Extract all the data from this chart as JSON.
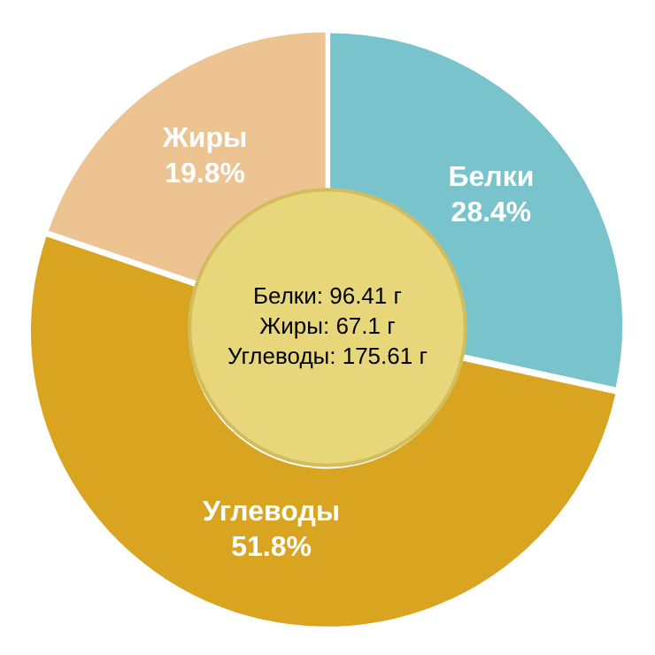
{
  "chart_data": {
    "type": "donut",
    "categories": [
      "Белки",
      "Углеводы",
      "Жиры"
    ],
    "values": [
      28.4,
      51.8,
      19.8
    ],
    "value_labels": [
      "28.4%",
      "51.8%",
      "19.8%"
    ],
    "colors": [
      "#79c4cc",
      "#d9a521",
      "#ecc391"
    ],
    "legend": false,
    "annotations": [
      "Белки: 96.41 г",
      "Жиры: 67.1 г",
      "Углеводы: 175.61 г"
    ]
  }
}
